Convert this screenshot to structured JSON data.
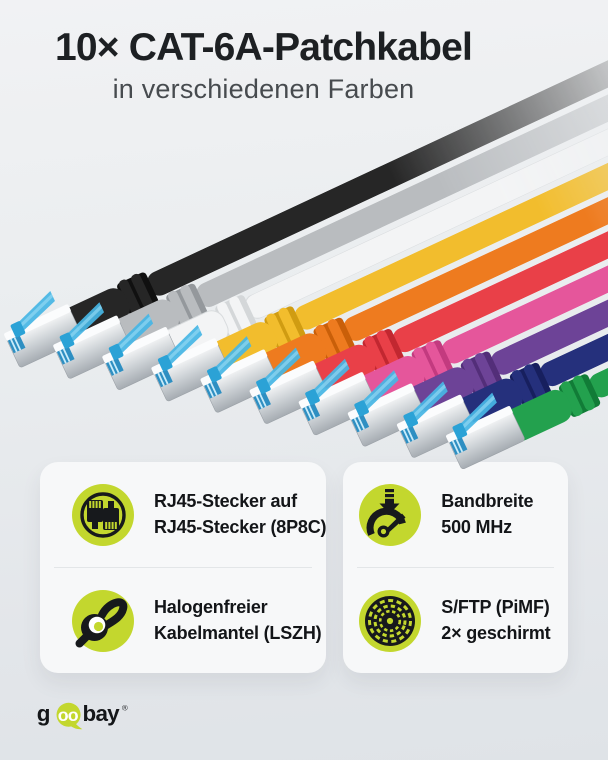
{
  "header": {
    "title": "10× CAT-6A-Patchkabel",
    "subtitle": "in verschiedenen Farben"
  },
  "accent_color": "#c3d72e",
  "connector": {
    "latch_color": "#47b6e4",
    "body_color": "#cdd2d6"
  },
  "cables": [
    {
      "name": "schwarz",
      "color": "#262626",
      "dark": "#101010"
    },
    {
      "name": "grau",
      "color": "#b9bcbf",
      "dark": "#94989c"
    },
    {
      "name": "weiss",
      "color": "#f3f4f5",
      "dark": "#d4d7d9",
      "stroke": "#d9dcde"
    },
    {
      "name": "gelb",
      "color": "#f2bd2d",
      "dark": "#d09c12"
    },
    {
      "name": "orange",
      "color": "#ee7b1f",
      "dark": "#c95f09"
    },
    {
      "name": "rot",
      "color": "#e94048",
      "dark": "#c22730"
    },
    {
      "name": "magenta",
      "color": "#e5569b",
      "dark": "#c33a7f"
    },
    {
      "name": "violett",
      "color": "#6d4397",
      "dark": "#532e79"
    },
    {
      "name": "blau",
      "color": "#25307c",
      "dark": "#171f5e"
    },
    {
      "name": "gruen",
      "color": "#23a14e",
      "dark": "#117c37"
    }
  ],
  "features": [
    {
      "icon": "rj45-connectors-icon",
      "lines": [
        "RJ45-Stecker auf",
        "RJ45-Stecker (8P8C)"
      ]
    },
    {
      "icon": "bandwidth-gauge-icon",
      "lines": [
        "Bandbreite",
        "500 MHz"
      ]
    },
    {
      "icon": "halogen-free-cable-icon",
      "lines": [
        "Halogenfreier",
        "Kabelmantel (LSZH)"
      ]
    },
    {
      "icon": "shielded-cable-icon",
      "lines": [
        "S/FTP (PiMF)",
        "2× geschirmt"
      ]
    }
  ],
  "logo": {
    "g": "g",
    "oo": "oo",
    "bay": "bay",
    "registered": "®"
  }
}
